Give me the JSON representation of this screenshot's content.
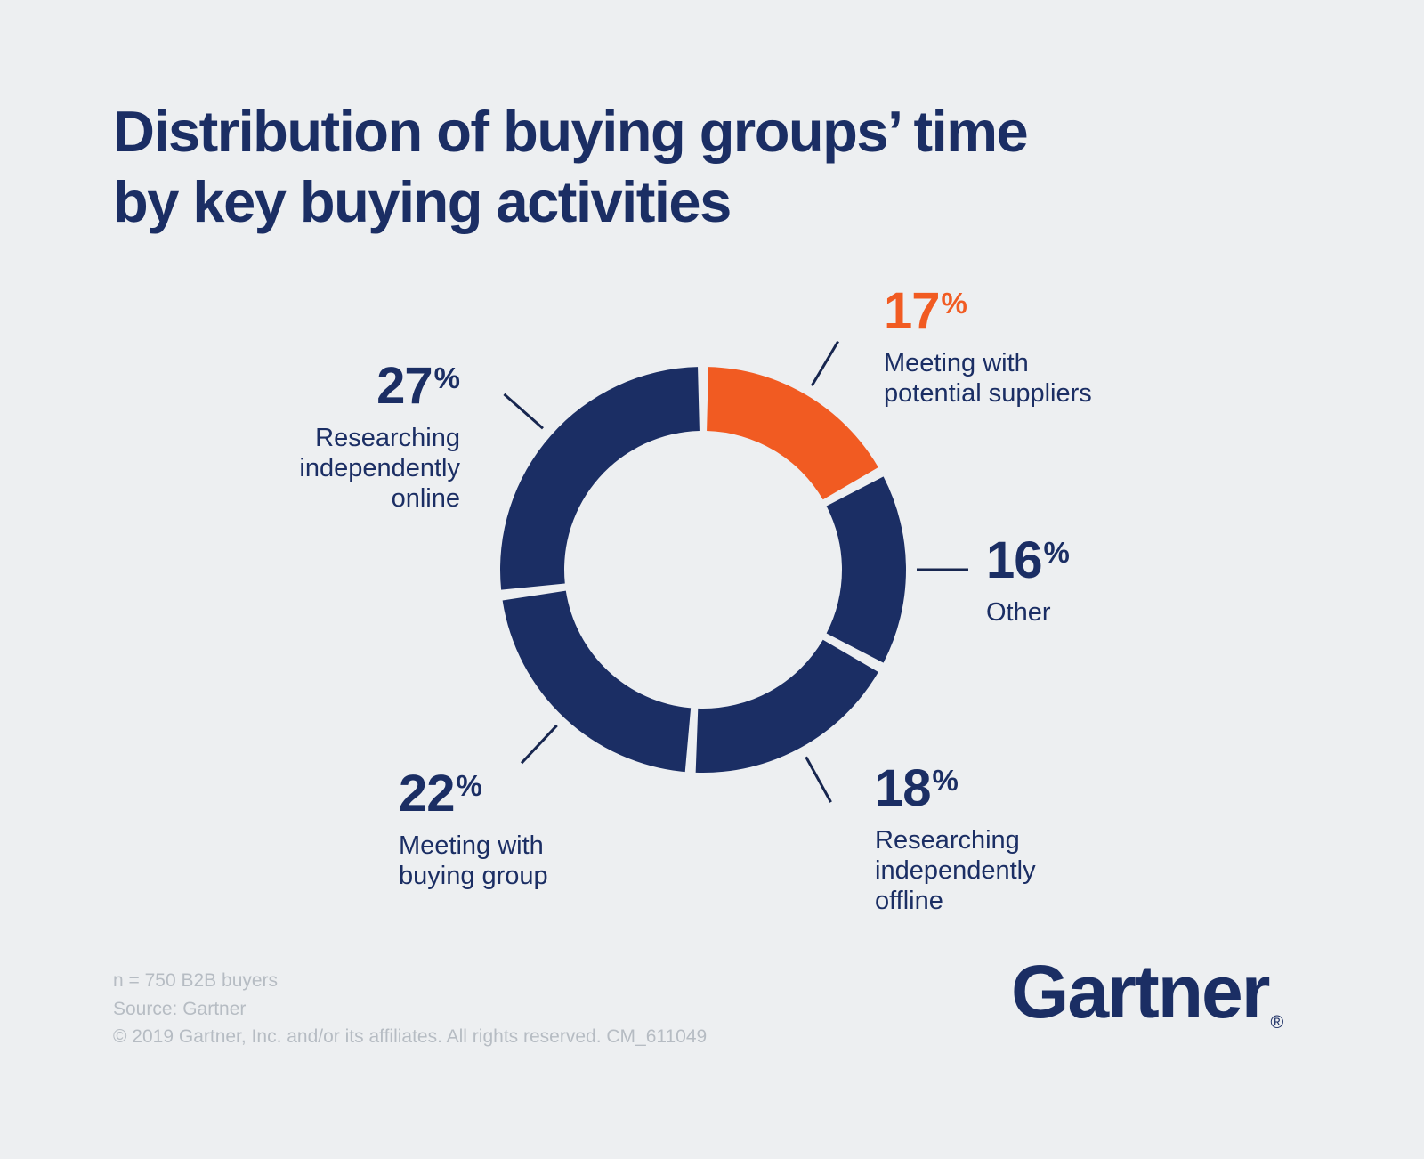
{
  "title": {
    "text": "Distribution of buying groups’ time\nby key buying activities"
  },
  "chart_data": {
    "type": "pie",
    "donut": true,
    "title": "Distribution of buying groups’ time by key buying activities",
    "categories": [
      "Meeting with potential suppliers",
      "Other",
      "Researching independently offline",
      "Meeting with buying group",
      "Researching independently online"
    ],
    "values": [
      17,
      16,
      18,
      22,
      27
    ],
    "colors": [
      "#F15B22",
      "#1B2E64",
      "#1B2E64",
      "#1B2E64",
      "#1B2E64"
    ],
    "start_angle_deg": 0,
    "direction": "clockwise",
    "gap_deg": 3,
    "legend_position": "callouts-around-donut"
  },
  "callouts": [
    {
      "value": "17",
      "suffix": "%",
      "label": "Meeting with\npotential suppliers"
    },
    {
      "value": "16",
      "suffix": "%",
      "label": "Other"
    },
    {
      "value": "18",
      "suffix": "%",
      "label": "Researching\nindependently\noffline"
    },
    {
      "value": "22",
      "suffix": "%",
      "label": "Meeting with\nbuying group"
    },
    {
      "value": "27",
      "suffix": "%",
      "label": "Researching\nindependently\nonline"
    }
  ],
  "footer": {
    "sample": "n = 750 B2B buyers",
    "source": "Source: Gartner",
    "copyright": "© 2019 Gartner, Inc. and/or its affiliates. All rights reserved. CM_611049"
  },
  "logo": {
    "text": "Gartner",
    "registered": "®"
  },
  "colors": {
    "navy": "#1B2E64",
    "orange": "#F15B22",
    "background": "#EDEFF1",
    "footer_gray": "#B6BCC3",
    "leader_line": "#17264F"
  }
}
